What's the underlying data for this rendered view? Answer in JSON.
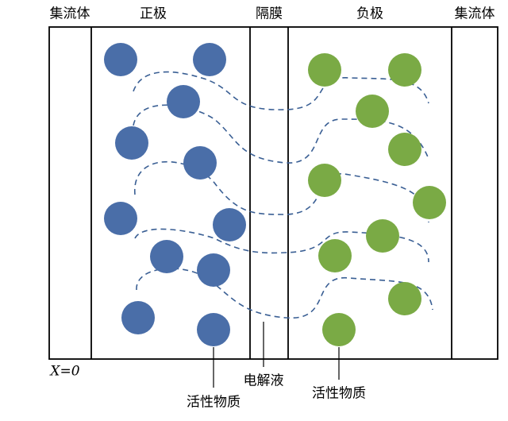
{
  "headers": [
    "集流体",
    "正极",
    "隔膜",
    "负极",
    "集流体"
  ],
  "origin": "X=0",
  "callouts": {
    "electrolyte": "电解液",
    "cathode_material": "活性物质",
    "anode_material": "活性物质"
  }
}
